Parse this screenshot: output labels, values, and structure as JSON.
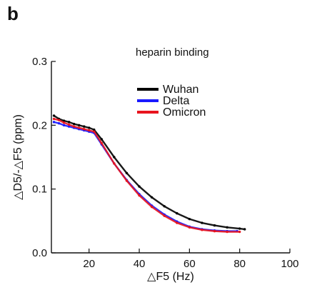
{
  "panel_label": "b",
  "chart_data": {
    "type": "scatter",
    "annotation": "heparin binding",
    "xlabel": "△F5 (Hz)",
    "ylabel": "△D5/-△F5 (ppm)",
    "xlim": [
      5,
      100
    ],
    "ylim": [
      0,
      0.3
    ],
    "xticks": [
      20,
      40,
      60,
      80,
      100
    ],
    "yticks": [
      0.0,
      0.1,
      0.2,
      0.3
    ],
    "ytick_labels": [
      "0.0",
      "0.1",
      "0.2",
      "0.3"
    ],
    "grid": false,
    "legend_position": "top-right",
    "series": [
      {
        "name": "Wuhan",
        "color": "#000000",
        "x": [
          6,
          8,
          10,
          12,
          14,
          16,
          18,
          20,
          22,
          25,
          30,
          35,
          40,
          45,
          50,
          55,
          60,
          65,
          70,
          75,
          80,
          82
        ],
        "y": [
          0.215,
          0.21,
          0.207,
          0.205,
          0.202,
          0.2,
          0.198,
          0.196,
          0.193,
          0.178,
          0.15,
          0.125,
          0.104,
          0.087,
          0.073,
          0.062,
          0.053,
          0.047,
          0.043,
          0.04,
          0.038,
          0.037
        ]
      },
      {
        "name": "Delta",
        "color": "#1a1aff",
        "x": [
          6,
          8,
          10,
          12,
          14,
          16,
          18,
          20,
          22,
          25,
          30,
          35,
          40,
          45,
          50,
          55,
          60,
          65,
          70,
          75,
          79
        ],
        "y": [
          0.205,
          0.203,
          0.2,
          0.198,
          0.196,
          0.194,
          0.192,
          0.19,
          0.188,
          0.17,
          0.14,
          0.114,
          0.092,
          0.074,
          0.06,
          0.049,
          0.041,
          0.037,
          0.035,
          0.034,
          0.034
        ]
      },
      {
        "name": "Omicron",
        "color": "#e8141e",
        "x": [
          6,
          8,
          10,
          12,
          14,
          16,
          18,
          20,
          22,
          25,
          30,
          35,
          40,
          45,
          50,
          55,
          60,
          65,
          70,
          75,
          80
        ],
        "y": [
          0.21,
          0.208,
          0.204,
          0.201,
          0.198,
          0.196,
          0.194,
          0.192,
          0.19,
          0.172,
          0.14,
          0.113,
          0.09,
          0.072,
          0.058,
          0.047,
          0.04,
          0.036,
          0.034,
          0.033,
          0.033
        ]
      }
    ]
  }
}
